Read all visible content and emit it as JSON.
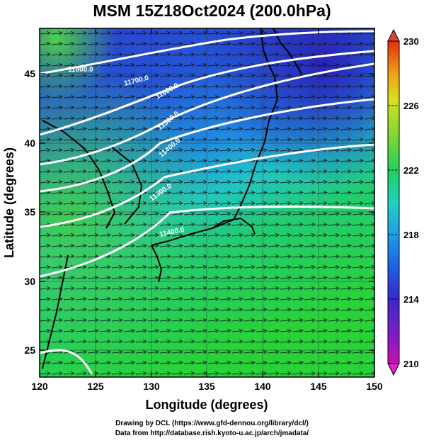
{
  "title": "MSM 15Z18Oct2024 (200.0hPa)",
  "x_axis": {
    "label": "Longitude (degrees)",
    "ticks": [
      "120",
      "125",
      "130",
      "135",
      "140",
      "145",
      "150"
    ],
    "range": [
      120,
      150
    ]
  },
  "y_axis": {
    "label": "Latitude  (degrees)",
    "ticks": [
      "25",
      "30",
      "35",
      "40",
      "45"
    ],
    "range": [
      22.4,
      47.6
    ]
  },
  "colorbar": {
    "ticks": [
      "210",
      "214",
      "218",
      "222",
      "226",
      "230"
    ],
    "range": [
      210,
      230
    ],
    "colors": [
      "#c012b0",
      "#3a28c8",
      "#1e7ee8",
      "#22c8d8",
      "#22d060",
      "#b8e020",
      "#f0c018",
      "#e04010"
    ]
  },
  "contours": [
    {
      "label": "11800.0"
    },
    {
      "label": "11700.0"
    },
    {
      "label": "11600.0"
    },
    {
      "label": "11500.0"
    },
    {
      "label": "11400.0"
    },
    {
      "label": "11300.0"
    },
    {
      "label": "11400.0"
    }
  ],
  "credits": {
    "line1": "Drawing by DCL (https://www.gfd-dennou.org/library/dcl/)",
    "line2": "Data from http://database.rish.kyoto-u.ac.jp/arch/jmadata/"
  }
}
